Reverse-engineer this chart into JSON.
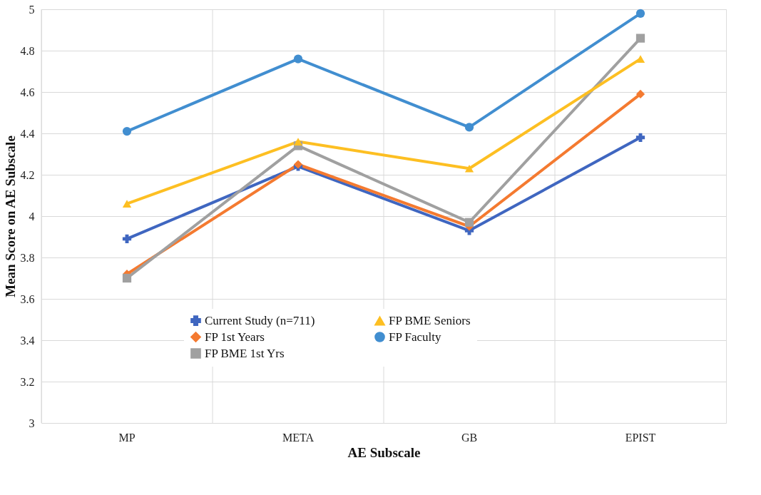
{
  "chart_data": {
    "type": "line",
    "xlabel": "AE Subscale",
    "ylabel": "Mean Score on AE Subscale",
    "categories": [
      "MP",
      "META",
      "GB",
      "EPIST"
    ],
    "series": [
      {
        "name": "Current Study (n=711)",
        "color": "#3f66c0",
        "marker": "cross",
        "values": [
          3.89,
          4.24,
          3.93,
          4.38
        ]
      },
      {
        "name": "FP 1st Years",
        "color": "#f47a30",
        "marker": "diamond",
        "values": [
          3.72,
          4.25,
          3.95,
          4.59
        ]
      },
      {
        "name": "FP BME 1st Yrs",
        "color": "#a0a0a0",
        "marker": "square",
        "values": [
          3.7,
          4.34,
          3.97,
          4.86
        ]
      },
      {
        "name": "FP BME Seniors",
        "color": "#fdbf22",
        "marker": "triangle",
        "values": [
          4.06,
          4.36,
          4.23,
          4.76
        ]
      },
      {
        "name": "FP Faculty",
        "color": "#418ed0",
        "marker": "circle",
        "values": [
          4.41,
          4.76,
          4.43,
          4.98
        ]
      }
    ],
    "ylim": [
      3,
      5
    ],
    "yticks": [
      3,
      3.2,
      3.4,
      3.6,
      3.8,
      4,
      4.2,
      4.4,
      4.6,
      4.8,
      5
    ],
    "grid": true,
    "legend": "bottom",
    "line_style": "solid"
  }
}
